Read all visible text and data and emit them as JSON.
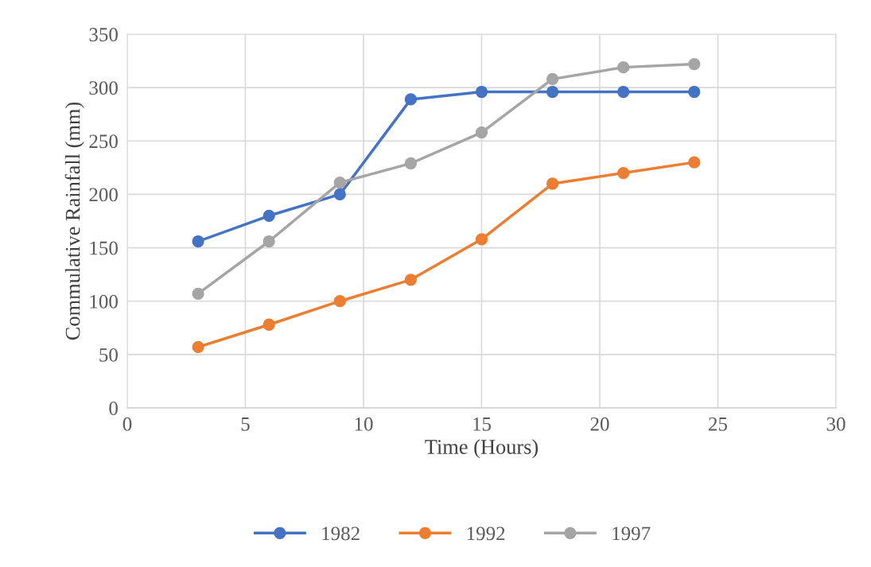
{
  "chart_data": {
    "type": "line",
    "xlabel": "Time (Hours)",
    "ylabel": "Commulative Rainfall (mm)",
    "x": [
      3,
      6,
      9,
      12,
      15,
      18,
      21,
      24
    ],
    "series": [
      {
        "name": "1982",
        "color": "#4472c4",
        "values": [
          156,
          180,
          200,
          289,
          296,
          296,
          296,
          296
        ]
      },
      {
        "name": "1992",
        "color": "#ed7d31",
        "values": [
          57,
          78,
          100,
          120,
          158,
          210,
          220,
          230
        ]
      },
      {
        "name": "1997",
        "color": "#a5a5a5",
        "values": [
          107,
          156,
          211,
          229,
          258,
          308,
          319,
          322
        ]
      }
    ],
    "xlim": [
      0,
      30
    ],
    "xticks": [
      0,
      5,
      10,
      15,
      20,
      25,
      30
    ],
    "ylim": [
      0,
      350
    ],
    "yticks": [
      0,
      50,
      100,
      150,
      200,
      250,
      300,
      350
    ],
    "grid": true,
    "legend": "bottom",
    "marker": "circle",
    "line_style": "solid"
  }
}
